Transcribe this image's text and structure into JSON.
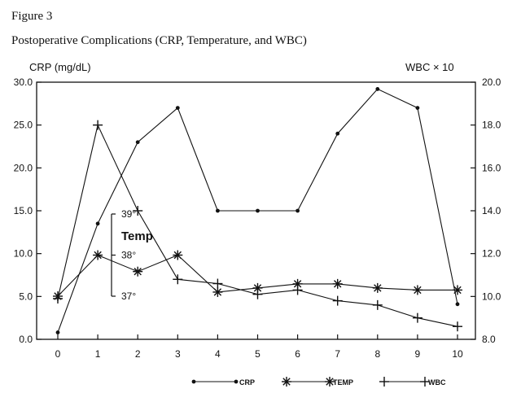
{
  "figure_label": "Figure 3",
  "chart_data": {
    "type": "line",
    "title": "Postoperative Complications (CRP, Temperature, and WBC)",
    "xlabel": "",
    "ylabel_left": "CRP (mg/dL)",
    "ylabel_right": "WBC × 10",
    "x": [
      0,
      1,
      2,
      3,
      4,
      5,
      6,
      7,
      8,
      9,
      10
    ],
    "x_ticks": [
      "0",
      "1",
      "2",
      "3",
      "4",
      "5",
      "6",
      "7",
      "8",
      "9",
      "10"
    ],
    "ylim_left": [
      0,
      30
    ],
    "y_ticks_left": [
      "0.0",
      "5.0",
      "10.0",
      "15.0",
      "20.0",
      "25.0",
      "30.0"
    ],
    "ylim_right": [
      8,
      20
    ],
    "y_ticks_right": [
      "8.0",
      "10.0",
      "12.0",
      "14.0",
      "16.0",
      "18.0",
      "20.0"
    ],
    "grid": false,
    "legend_position": "bottom",
    "series": [
      {
        "name": "CRP",
        "marker": "dot",
        "axis": "left",
        "values": [
          0.8,
          13.5,
          23.0,
          27.0,
          15.0,
          15.0,
          15.0,
          24.0,
          29.2,
          27.0,
          4.1
        ]
      },
      {
        "name": "TEMP",
        "marker": "asterisk",
        "axis": "temp",
        "values": [
          37.0,
          38.0,
          37.6,
          38.0,
          37.1,
          37.2,
          37.3,
          37.3,
          37.2,
          37.15,
          37.15
        ]
      },
      {
        "name": "WBC",
        "marker": "plus",
        "axis": "right",
        "values": [
          9.9,
          18.0,
          14.0,
          10.8,
          10.6,
          10.1,
          10.3,
          9.8,
          9.6,
          9.0,
          8.6
        ]
      }
    ],
    "temp_scale": {
      "label": "Temp",
      "ticks": [
        {
          "value": 39,
          "label": "39°"
        },
        {
          "value": 38,
          "label": "38°"
        },
        {
          "value": 37,
          "label": "37°"
        }
      ]
    }
  }
}
